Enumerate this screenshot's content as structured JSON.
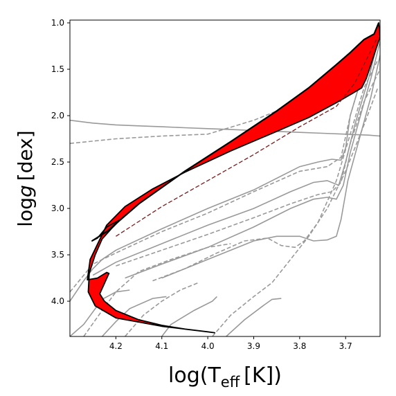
{
  "chart_data": {
    "type": "line",
    "xlabel_main": "log(T",
    "xlabel_sub": "eff",
    "xlabel_tail": "[K])",
    "ylabel_pre": "log",
    "ylabel_var": "g",
    "ylabel_tail": "[dex]",
    "xlim": [
      4.3,
      3.625
    ],
    "ylim": [
      4.38,
      0.97
    ],
    "x_inverted": true,
    "y_inverted": true,
    "xticks": [
      {
        "value": 4.2,
        "label": "4.2"
      },
      {
        "value": 4.1,
        "label": "4.1"
      },
      {
        "value": 4.0,
        "label": "4.0"
      },
      {
        "value": 3.9,
        "label": "3.9"
      },
      {
        "value": 3.8,
        "label": "3.8"
      },
      {
        "value": 3.7,
        "label": "3.7"
      }
    ],
    "yticks": [
      {
        "value": 1.0,
        "label": "1.0"
      },
      {
        "value": 1.5,
        "label": "1.5"
      },
      {
        "value": 2.0,
        "label": "2.0"
      },
      {
        "value": 2.5,
        "label": "2.5"
      },
      {
        "value": 3.0,
        "label": "3.0"
      },
      {
        "value": 3.5,
        "label": "3.5"
      },
      {
        "value": 4.0,
        "label": "4.0"
      }
    ],
    "colors": {
      "band_fill": "#ff0000",
      "band_edge": "#000000",
      "track": "#999999",
      "inner_track": "#7a1a1a"
    },
    "band": {
      "upper": [
        [
          4.252,
          3.35
        ],
        [
          4.22,
          3.25
        ],
        [
          4.15,
          2.95
        ],
        [
          4.05,
          2.6
        ],
        [
          3.95,
          2.28
        ],
        [
          3.85,
          1.95
        ],
        [
          3.78,
          1.7
        ],
        [
          3.72,
          1.45
        ],
        [
          3.69,
          1.32
        ],
        [
          3.66,
          1.18
        ],
        [
          3.638,
          1.12
        ],
        [
          3.628,
          1.0
        ]
      ],
      "lower": [
        [
          3.625,
          1.15
        ],
        [
          3.655,
          1.6
        ],
        [
          3.665,
          1.7
        ],
        [
          3.685,
          1.76
        ],
        [
          3.72,
          1.86
        ],
        [
          3.78,
          2.02
        ],
        [
          3.85,
          2.17
        ],
        [
          3.95,
          2.38
        ],
        [
          4.05,
          2.61
        ],
        [
          4.12,
          2.79
        ],
        [
          4.18,
          2.98
        ],
        [
          4.22,
          3.18
        ],
        [
          4.256,
          3.55
        ],
        [
          4.262,
          3.77
        ],
        [
          4.24,
          3.75
        ],
        [
          4.22,
          3.69
        ],
        [
          4.215,
          3.7
        ],
        [
          4.235,
          3.92
        ],
        [
          4.225,
          4.0
        ],
        [
          4.2,
          4.1
        ],
        [
          4.15,
          4.2
        ],
        [
          4.1,
          4.26
        ],
        [
          4.05,
          4.3
        ],
        [
          4.0,
          4.33
        ],
        [
          3.985,
          4.34
        ],
        [
          4.0,
          4.33
        ],
        [
          4.1,
          4.27
        ],
        [
          4.2,
          4.18
        ],
        [
          4.245,
          4.05
        ],
        [
          4.26,
          3.9
        ],
        [
          4.258,
          3.7
        ],
        [
          4.245,
          3.5
        ],
        [
          4.23,
          3.33
        ],
        [
          4.21,
          3.22
        ],
        [
          4.19,
          3.12
        ],
        [
          4.22,
          3.2
        ],
        [
          4.24,
          3.32
        ],
        [
          4.252,
          3.35
        ]
      ]
    },
    "series": [
      {
        "style": "solid",
        "values": [
          [
            4.3,
            4.0
          ],
          [
            4.27,
            3.78
          ],
          [
            4.25,
            3.65
          ],
          [
            4.23,
            3.55
          ],
          [
            4.2,
            3.45
          ],
          [
            4.1,
            3.22
          ],
          [
            4.0,
            3.0
          ],
          [
            3.9,
            2.8
          ],
          [
            3.8,
            2.55
          ],
          [
            3.76,
            2.5
          ],
          [
            3.73,
            2.47
          ],
          [
            3.71,
            2.48
          ],
          [
            3.7,
            2.35
          ],
          [
            3.69,
            2.0
          ],
          [
            3.66,
            1.5
          ],
          [
            3.625,
            1.05
          ]
        ]
      },
      {
        "style": "solid",
        "values": [
          [
            4.25,
            3.72
          ],
          [
            4.2,
            3.58
          ],
          [
            4.1,
            3.38
          ],
          [
            4.0,
            3.18
          ],
          [
            3.9,
            3.0
          ],
          [
            3.82,
            2.82
          ],
          [
            3.77,
            2.72
          ],
          [
            3.74,
            2.7
          ],
          [
            3.715,
            2.75
          ],
          [
            3.7,
            2.5
          ],
          [
            3.68,
            2.1
          ],
          [
            3.65,
            1.6
          ],
          [
            3.625,
            1.1
          ]
        ]
      },
      {
        "style": "solid",
        "values": [
          [
            4.18,
            3.75
          ],
          [
            4.1,
            3.6
          ],
          [
            4.0,
            3.42
          ],
          [
            3.9,
            3.2
          ],
          [
            3.82,
            3.0
          ],
          [
            3.77,
            2.9
          ],
          [
            3.74,
            2.88
          ],
          [
            3.72,
            2.9
          ],
          [
            3.705,
            2.75
          ],
          [
            3.69,
            2.4
          ],
          [
            3.665,
            1.95
          ],
          [
            3.645,
            1.6
          ],
          [
            3.625,
            1.2
          ]
        ]
      },
      {
        "style": "solid",
        "values": [
          [
            4.1,
            3.75
          ],
          [
            4.0,
            3.55
          ],
          [
            3.9,
            3.35
          ],
          [
            3.85,
            3.3
          ],
          [
            3.8,
            3.3
          ],
          [
            3.77,
            3.35
          ],
          [
            3.74,
            3.34
          ],
          [
            3.72,
            3.3
          ],
          [
            3.71,
            3.12
          ],
          [
            3.695,
            2.7
          ],
          [
            3.67,
            2.25
          ],
          [
            3.645,
            1.8
          ],
          [
            3.625,
            1.35
          ]
        ]
      },
      {
        "style": "solid",
        "values": [
          [
            4.3,
            2.05
          ],
          [
            4.25,
            2.08
          ],
          [
            4.2,
            2.1
          ],
          [
            4.15,
            2.11
          ],
          [
            4.1,
            2.12
          ],
          [
            4.05,
            2.13
          ],
          [
            4.0,
            2.14
          ],
          [
            3.95,
            2.15
          ],
          [
            3.9,
            2.16
          ],
          [
            3.85,
            2.17
          ],
          [
            3.8,
            2.18
          ],
          [
            3.75,
            2.19
          ],
          [
            3.7,
            2.2
          ],
          [
            3.65,
            2.21
          ],
          [
            3.625,
            2.22
          ]
        ]
      },
      {
        "style": "solid",
        "values": [
          [
            4.3,
            4.38
          ],
          [
            4.27,
            4.25
          ],
          [
            4.23,
            3.98
          ],
          [
            4.2,
            3.9
          ],
          [
            4.17,
            3.88
          ]
        ]
      },
      {
        "style": "solid",
        "values": [
          [
            4.23,
            4.38
          ],
          [
            4.2,
            4.22
          ],
          [
            4.17,
            4.08
          ],
          [
            4.12,
            3.97
          ],
          [
            4.09,
            3.95
          ]
        ]
      },
      {
        "style": "solid",
        "values": [
          [
            4.1,
            4.38
          ],
          [
            4.08,
            4.25
          ],
          [
            4.03,
            4.1
          ],
          [
            3.99,
            4.0
          ],
          [
            3.98,
            3.95
          ]
        ]
      },
      {
        "style": "solid",
        "values": [
          [
            3.96,
            4.38
          ],
          [
            3.92,
            4.2
          ],
          [
            3.88,
            4.05
          ],
          [
            3.86,
            3.98
          ],
          [
            3.84,
            3.97
          ]
        ]
      },
      {
        "style": "dashed",
        "values": [
          [
            4.3,
            3.9
          ],
          [
            4.25,
            3.6
          ],
          [
            4.2,
            3.48
          ],
          [
            4.1,
            3.25
          ],
          [
            4.0,
            3.05
          ],
          [
            3.9,
            2.82
          ],
          [
            3.8,
            2.6
          ],
          [
            3.74,
            2.55
          ],
          [
            3.71,
            2.45
          ],
          [
            3.69,
            2.0
          ],
          [
            3.66,
            1.5
          ],
          [
            3.63,
            1.1
          ]
        ]
      },
      {
        "style": "dashed",
        "values": [
          [
            4.2,
            3.62
          ],
          [
            4.1,
            3.45
          ],
          [
            4.0,
            3.28
          ],
          [
            3.9,
            3.1
          ],
          [
            3.82,
            2.95
          ],
          [
            3.76,
            2.85
          ],
          [
            3.73,
            2.82
          ],
          [
            3.71,
            2.72
          ],
          [
            3.69,
            2.3
          ],
          [
            3.66,
            1.85
          ],
          [
            3.625,
            1.5
          ]
        ]
      },
      {
        "style": "dashed",
        "values": [
          [
            4.12,
            3.78
          ],
          [
            4.05,
            3.65
          ],
          [
            3.98,
            3.48
          ],
          [
            3.92,
            3.35
          ],
          [
            3.87,
            3.32
          ],
          [
            3.84,
            3.4
          ],
          [
            3.81,
            3.42
          ],
          [
            3.79,
            3.35
          ],
          [
            3.76,
            3.15
          ],
          [
            3.72,
            2.7
          ],
          [
            3.69,
            2.2
          ],
          [
            3.66,
            1.7
          ],
          [
            3.63,
            1.4
          ]
        ]
      },
      {
        "style": "dashed",
        "values": [
          [
            3.99,
            4.38
          ],
          [
            3.95,
            4.15
          ],
          [
            3.9,
            3.95
          ],
          [
            3.86,
            3.8
          ],
          [
            3.82,
            3.55
          ],
          [
            3.78,
            3.3
          ],
          [
            3.74,
            3.0
          ],
          [
            3.7,
            2.6
          ],
          [
            3.66,
            2.1
          ],
          [
            3.63,
            1.7
          ]
        ]
      },
      {
        "style": "dashed",
        "values": [
          [
            4.27,
            4.38
          ],
          [
            4.23,
            4.1
          ],
          [
            4.2,
            3.9
          ],
          [
            4.15,
            3.68
          ],
          [
            4.08,
            3.55
          ],
          [
            4.0,
            3.42
          ],
          [
            3.95,
            3.38
          ]
        ]
      },
      {
        "style": "dashed",
        "values": [
          [
            4.18,
            4.38
          ],
          [
            4.14,
            4.15
          ],
          [
            4.1,
            4.0
          ],
          [
            4.06,
            3.88
          ],
          [
            4.02,
            3.8
          ]
        ]
      },
      {
        "style": "dashed",
        "values": [
          [
            4.3,
            2.3
          ],
          [
            4.2,
            2.25
          ],
          [
            4.1,
            2.22
          ],
          [
            4.0,
            2.2
          ],
          [
            3.9,
            2.05
          ],
          [
            3.8,
            1.85
          ],
          [
            3.72,
            1.65
          ],
          [
            3.66,
            1.4
          ],
          [
            3.63,
            1.2
          ]
        ]
      }
    ]
  }
}
